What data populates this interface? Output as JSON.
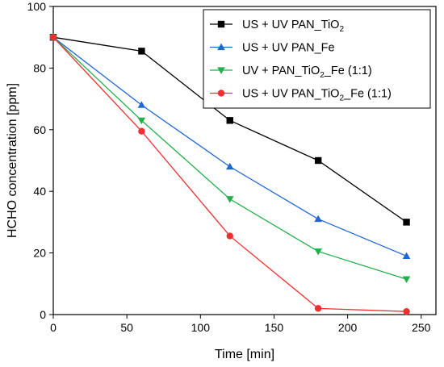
{
  "chart_data": {
    "type": "line",
    "xlabel": "Time [min]",
    "ylabel": "HCHO concentration [ppm]",
    "xlim": [
      0,
      260
    ],
    "ylim": [
      0,
      100
    ],
    "xticks": [
      0,
      50,
      100,
      150,
      200,
      250
    ],
    "yticks": [
      0,
      20,
      40,
      60,
      80,
      100
    ],
    "x": [
      0,
      60,
      120,
      180,
      240
    ],
    "grid": false,
    "legend_position": "top-right",
    "series": [
      {
        "name": "US + UV PAN_TiO2",
        "label_parts": [
          {
            "t": "US + UV PAN_TiO"
          },
          {
            "t": "2",
            "sub": true
          }
        ],
        "values": [
          90,
          85.5,
          63,
          50,
          30
        ],
        "color": "#000000",
        "marker": "square"
      },
      {
        "name": "US + UV PAN_Fe",
        "label_parts": [
          {
            "t": "US + UV PAN_Fe"
          }
        ],
        "values": [
          90,
          68,
          48,
          31,
          19
        ],
        "color": "#1f66d6",
        "marker": "triangle-up"
      },
      {
        "name": "UV + PAN_TiO2_Fe (1:1)",
        "label_parts": [
          {
            "t": "UV + PAN_TiO"
          },
          {
            "t": "2",
            "sub": true
          },
          {
            "t": "_Fe (1:1)"
          }
        ],
        "values": [
          90,
          63,
          37.5,
          20.5,
          11.5
        ],
        "color": "#22b04b",
        "marker": "triangle-down"
      },
      {
        "name": "US + UV PAN_TiO2_Fe (1:1)",
        "label_parts": [
          {
            "t": "US + UV PAN_TiO"
          },
          {
            "t": "2",
            "sub": true
          },
          {
            "t": "_Fe (1:1)"
          }
        ],
        "values": [
          90,
          59.5,
          25.5,
          2,
          1
        ],
        "color": "#f03030",
        "marker": "circle"
      }
    ]
  }
}
